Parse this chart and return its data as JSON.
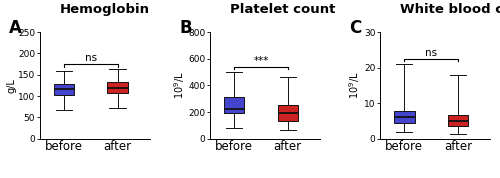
{
  "panels": [
    {
      "label": "A",
      "title": "Hemoglobin",
      "ylabel": "g/L",
      "ylabel_raw": "g/L",
      "ylim": [
        0,
        250
      ],
      "yticks": [
        0,
        50,
        100,
        150,
        200,
        250
      ],
      "significance": "ns",
      "boxes": [
        {
          "name": "before",
          "color": "#4444cc",
          "q1": 103,
          "median": 117,
          "q3": 128,
          "whisker_low": 68,
          "whisker_high": 158
        },
        {
          "name": "after",
          "color": "#cc2222",
          "q1": 108,
          "median": 120,
          "q3": 133,
          "whisker_low": 72,
          "whisker_high": 163
        }
      ]
    },
    {
      "label": "B",
      "title": "Platelet count",
      "ylabel": "10^9/L",
      "ylabel_raw": "10^9/L",
      "ylim": [
        0,
        800
      ],
      "yticks": [
        0,
        200,
        400,
        600,
        800
      ],
      "significance": "***",
      "boxes": [
        {
          "name": "before",
          "color": "#4444cc",
          "q1": 190,
          "median": 220,
          "q3": 310,
          "whisker_low": 80,
          "whisker_high": 500
        },
        {
          "name": "after",
          "color": "#cc2222",
          "q1": 130,
          "median": 190,
          "q3": 250,
          "whisker_low": 65,
          "whisker_high": 460
        }
      ]
    },
    {
      "label": "C",
      "title": "White blood cells",
      "ylabel": "10^9/L",
      "ylabel_raw": "10^9/L",
      "ylim": [
        0,
        30
      ],
      "yticks": [
        0,
        10,
        20,
        30
      ],
      "significance": "ns",
      "boxes": [
        {
          "name": "before",
          "color": "#4444cc",
          "q1": 4.5,
          "median": 6.0,
          "q3": 7.8,
          "whisker_low": 2.0,
          "whisker_high": 21.0
        },
        {
          "name": "after",
          "color": "#cc2222",
          "q1": 3.5,
          "median": 5.0,
          "q3": 6.8,
          "whisker_low": 1.5,
          "whisker_high": 18.0
        }
      ]
    }
  ],
  "background_color": "#ffffff",
  "box_width": 0.38,
  "edge_color": "#111111",
  "median_color": "#111111",
  "label_fontsize": 12,
  "title_fontsize": 9.5,
  "tick_fontsize": 6.5,
  "axis_label_fontsize": 7,
  "sig_fontsize": 7.5,
  "xticklabel_fontsize": 8.5
}
